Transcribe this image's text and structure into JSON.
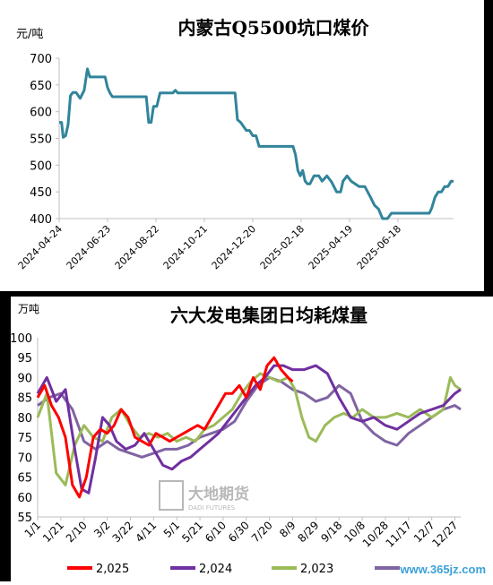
{
  "chart_data": [
    {
      "type": "line",
      "title": "内蒙古Q5500坑口煤价",
      "ylabel": "元/吨",
      "ylim": [
        400,
        700
      ],
      "yticks": [
        400,
        450,
        500,
        550,
        600,
        650,
        700
      ],
      "xticks": [
        "2024-04-24",
        "2024-06-23",
        "2024-08-22",
        "2024-10-21",
        "2024-12-20",
        "2025-02-18",
        "2025-04-19",
        "2025-06-18"
      ],
      "color": "#31849b",
      "x": [
        "2024-04-24",
        "2024-04-27",
        "2024-04-29",
        "2024-05-02",
        "2024-05-05",
        "2024-05-08",
        "2024-05-11",
        "2024-05-15",
        "2024-05-20",
        "2024-05-25",
        "2024-05-29",
        "2024-06-01",
        "2024-06-03",
        "2024-06-06",
        "2024-06-20",
        "2024-06-23",
        "2024-06-26",
        "2024-06-29",
        "2024-07-10",
        "2024-08-01",
        "2024-08-10",
        "2024-08-13",
        "2024-08-16",
        "2024-08-19",
        "2024-08-23",
        "2024-08-27",
        "2024-09-05",
        "2024-09-12",
        "2024-09-15",
        "2024-09-18",
        "2024-09-22",
        "2024-09-25",
        "2024-10-10",
        "2024-11-10",
        "2024-11-28",
        "2024-12-01",
        "2024-12-05",
        "2024-12-12",
        "2024-12-16",
        "2024-12-20",
        "2024-12-24",
        "2024-12-28",
        "2025-01-10",
        "2025-02-05",
        "2025-02-08",
        "2025-02-11",
        "2025-02-14",
        "2025-02-17",
        "2025-02-20",
        "2025-02-23",
        "2025-02-26",
        "2025-03-01",
        "2025-03-06",
        "2025-03-12",
        "2025-03-16",
        "2025-03-22",
        "2025-03-28",
        "2025-04-03",
        "2025-04-08",
        "2025-04-11",
        "2025-04-16",
        "2025-04-21",
        "2025-05-01",
        "2025-05-08",
        "2025-05-15",
        "2025-05-20",
        "2025-05-25",
        "2025-05-30",
        "2025-06-01",
        "2025-06-05",
        "2025-06-10",
        "2025-06-15",
        "2025-06-20",
        "2025-06-25",
        "2025-07-03",
        "2025-07-15",
        "2025-07-27",
        "2025-07-30",
        "2025-08-03",
        "2025-08-07",
        "2025-08-11",
        "2025-08-15",
        "2025-08-19",
        "2025-08-23",
        "2025-08-26"
      ],
      "values": [
        580,
        580,
        552,
        555,
        575,
        630,
        636,
        636,
        625,
        640,
        680,
        665,
        665,
        665,
        665,
        645,
        635,
        628,
        628,
        628,
        628,
        580,
        580,
        610,
        610,
        635,
        635,
        635,
        640,
        635,
        635,
        635,
        635,
        635,
        635,
        585,
        580,
        565,
        565,
        555,
        555,
        535,
        535,
        535,
        535,
        520,
        490,
        480,
        490,
        470,
        465,
        465,
        480,
        480,
        470,
        480,
        468,
        450,
        450,
        470,
        480,
        470,
        460,
        460,
        440,
        425,
        418,
        400,
        400,
        400,
        410,
        410,
        410,
        410,
        410,
        410,
        410,
        420,
        440,
        450,
        450,
        460,
        460,
        470,
        470
      ]
    },
    {
      "type": "line",
      "title": "六大发电集团日均耗煤量",
      "ylabel": "万吨",
      "ylim": [
        55,
        100
      ],
      "yticks": [
        55,
        60,
        65,
        70,
        75,
        80,
        85,
        90,
        95,
        100
      ],
      "xticks": [
        "1/1",
        "1/21",
        "2/10",
        "3/2",
        "3/22",
        "4/11",
        "5/1",
        "5/21",
        "6/10",
        "6/30",
        "7/20",
        "8/9",
        "8/29",
        "9/18",
        "10/8",
        "10/28",
        "11/17",
        "12/7",
        "12/27"
      ],
      "series": [
        {
          "name": "2,025",
          "color": "#ff0000",
          "days": [
            0,
            6,
            12,
            18,
            24,
            30,
            36,
            42,
            48,
            54,
            60,
            66,
            72,
            78,
            84,
            90,
            96,
            102,
            108,
            114,
            120,
            126,
            132,
            138,
            144,
            150,
            156,
            162,
            168,
            174,
            180,
            186,
            192,
            198,
            204,
            210,
            216,
            220
          ],
          "values": [
            85,
            88,
            83,
            80,
            75,
            63,
            60,
            65,
            75,
            77,
            76,
            78,
            82,
            80,
            75,
            74,
            73,
            76,
            75,
            74,
            75,
            76,
            77,
            78,
            77,
            80,
            83,
            86,
            86,
            88,
            85,
            90,
            87,
            93,
            95,
            92,
            90,
            89
          ]
        },
        {
          "name": "2,024",
          "color": "#7030a0",
          "days": [
            0,
            8,
            16,
            24,
            32,
            38,
            44,
            50,
            56,
            62,
            68,
            76,
            84,
            92,
            100,
            108,
            116,
            124,
            132,
            140,
            148,
            156,
            164,
            172,
            180,
            188,
            196,
            204,
            212,
            220,
            230,
            240,
            250,
            260,
            270,
            280,
            290,
            300,
            310,
            320,
            330,
            340,
            350,
            360,
            365
          ],
          "values": [
            86,
            90,
            84,
            87,
            72,
            62,
            61,
            70,
            80,
            78,
            74,
            72,
            73,
            76,
            72,
            68,
            67,
            69,
            70,
            72,
            74,
            76,
            79,
            82,
            85,
            88,
            90,
            93,
            93,
            92,
            92,
            93,
            91,
            85,
            80,
            79,
            80,
            78,
            77,
            79,
            81,
            82,
            83,
            86,
            87
          ]
        },
        {
          "name": "2,023",
          "color": "#9bbb59",
          "days": [
            0,
            8,
            16,
            24,
            32,
            40,
            48,
            56,
            64,
            72,
            80,
            88,
            96,
            104,
            112,
            120,
            128,
            136,
            144,
            152,
            160,
            168,
            176,
            184,
            192,
            200,
            208,
            216,
            222,
            228,
            234,
            240,
            248,
            256,
            264,
            272,
            280,
            290,
            300,
            310,
            320,
            330,
            340,
            350,
            356,
            360,
            365
          ],
          "values": [
            80,
            86,
            66,
            63,
            73,
            78,
            75,
            74,
            80,
            82,
            78,
            75,
            76,
            75,
            76,
            74,
            75,
            74,
            77,
            78,
            80,
            82,
            86,
            89,
            91,
            90,
            89,
            90,
            87,
            80,
            75,
            74,
            78,
            80,
            81,
            80,
            82,
            80,
            80,
            81,
            80,
            82,
            80,
            82,
            90,
            88,
            87
          ]
        },
        {
          "name": "",
          "color": "#8064a2",
          "days": [
            0,
            10,
            20,
            30,
            40,
            50,
            60,
            70,
            80,
            90,
            100,
            110,
            120,
            130,
            140,
            150,
            160,
            170,
            180,
            190,
            200,
            210,
            220,
            230,
            240,
            250,
            260,
            270,
            280,
            290,
            300,
            310,
            320,
            330,
            340,
            350,
            360,
            365
          ],
          "values": [
            83,
            85,
            86,
            82,
            74,
            72,
            74,
            72,
            71,
            70,
            71,
            72,
            72,
            73,
            75,
            76,
            77,
            79,
            84,
            88,
            90,
            89,
            87,
            86,
            84,
            85,
            88,
            86,
            79,
            76,
            74,
            73,
            76,
            78,
            80,
            82,
            83,
            82
          ]
        }
      ]
    }
  ],
  "watermark": {
    "text": "www.365jz.com"
  },
  "logo": {
    "text": "大地期货",
    "subtext": "DADI FUTURES"
  }
}
